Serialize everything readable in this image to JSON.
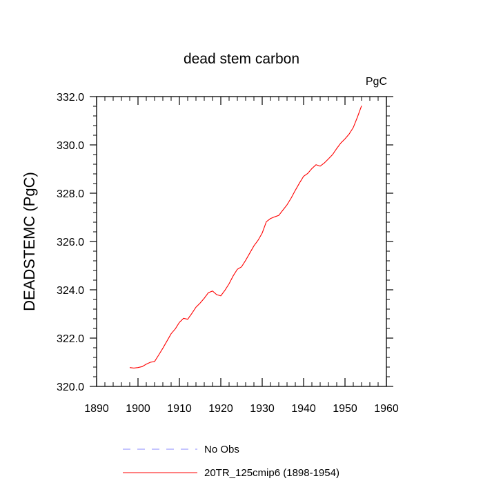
{
  "chart_data": {
    "type": "line",
    "title": "dead stem carbon",
    "units_label": "PgC",
    "xlabel": "",
    "ylabel": "DEADSTEMC  (PgC)",
    "xlim": [
      1890,
      1960
    ],
    "ylim": [
      320.0,
      332.0
    ],
    "x_ticks": [
      1890,
      1900,
      1910,
      1920,
      1930,
      1940,
      1950,
      1960
    ],
    "x_tick_labels": [
      "1890",
      "1900",
      "1910",
      "1920",
      "1930",
      "1940",
      "1950",
      "1960"
    ],
    "y_ticks": [
      320,
      322,
      324,
      326,
      328,
      330,
      332
    ],
    "y_tick_labels": [
      "320.0",
      "322.0",
      "324.0",
      "326.0",
      "328.0",
      "330.0",
      "332.0"
    ],
    "x_minor_step": 2,
    "y_minor_step": 0.4,
    "grid": false,
    "series": [
      {
        "name": "20TR_125cmip6 (1898-1954)",
        "color": "#ff0000",
        "dash": "solid",
        "x": [
          1898,
          1899,
          1900,
          1901,
          1902,
          1903,
          1904,
          1905,
          1906,
          1907,
          1908,
          1909,
          1910,
          1911,
          1912,
          1913,
          1914,
          1915,
          1916,
          1917,
          1918,
          1919,
          1920,
          1921,
          1922,
          1923,
          1924,
          1925,
          1926,
          1927,
          1928,
          1929,
          1930,
          1931,
          1932,
          1933,
          1934,
          1935,
          1936,
          1937,
          1938,
          1939,
          1940,
          1941,
          1942,
          1943,
          1944,
          1945,
          1946,
          1947,
          1948,
          1949,
          1950,
          1951,
          1952,
          1953,
          1954
        ],
        "y": [
          320.78,
          320.76,
          320.78,
          320.82,
          320.92,
          321.0,
          321.03,
          321.3,
          321.58,
          321.88,
          322.18,
          322.38,
          322.65,
          322.82,
          322.78,
          323.02,
          323.28,
          323.45,
          323.65,
          323.88,
          323.95,
          323.8,
          323.75,
          323.98,
          324.25,
          324.58,
          324.85,
          324.95,
          325.22,
          325.52,
          325.82,
          326.05,
          326.35,
          326.82,
          326.95,
          327.02,
          327.08,
          327.3,
          327.52,
          327.8,
          328.12,
          328.42,
          328.7,
          328.82,
          329.02,
          329.18,
          329.12,
          329.25,
          329.42,
          329.6,
          329.85,
          330.08,
          330.25,
          330.45,
          330.72,
          331.15,
          331.62
        ]
      },
      {
        "name": "No Obs",
        "color": "#8888ff",
        "dash": "dashed",
        "x": [],
        "y": []
      }
    ],
    "legend": {
      "placement": "bottom-left",
      "entries": [
        {
          "label": "No Obs",
          "color": "#8888ff",
          "dash": "dashed"
        },
        {
          "label": "20TR_125cmip6 (1898-1954)",
          "color": "#ff0000",
          "dash": "solid"
        }
      ]
    }
  }
}
